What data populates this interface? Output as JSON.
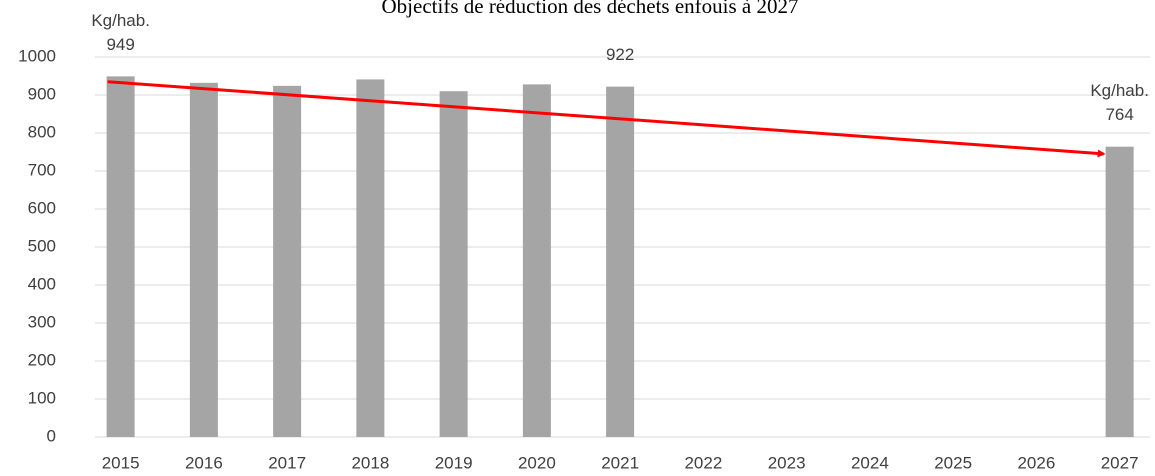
{
  "chart_data": {
    "type": "bar",
    "title": "Objectifs de réduction des déchets enfouis à 2027",
    "categories": [
      "2015",
      "2016",
      "2017",
      "2018",
      "2019",
      "2020",
      "2021",
      "2022",
      "2023",
      "2024",
      "2025",
      "2026",
      "2027"
    ],
    "values": [
      949,
      932,
      924,
      941,
      910,
      928,
      922,
      null,
      null,
      null,
      null,
      null,
      764
    ],
    "value_labels": [
      "949",
      null,
      null,
      null,
      null,
      null,
      "922",
      null,
      null,
      null,
      null,
      null,
      "764"
    ],
    "annotations": [
      {
        "text": "Kg/hab.",
        "category": "2015"
      },
      {
        "text": "Kg/hab.",
        "category": "2027"
      }
    ],
    "arrow": {
      "from": 935,
      "to": 745,
      "color": "#ff0000"
    },
    "color": "#a5a5a5",
    "ylim": [
      0,
      1000
    ],
    "yticks": [
      0,
      100,
      200,
      300,
      400,
      500,
      600,
      700,
      800,
      900,
      1000
    ],
    "grid": true
  }
}
